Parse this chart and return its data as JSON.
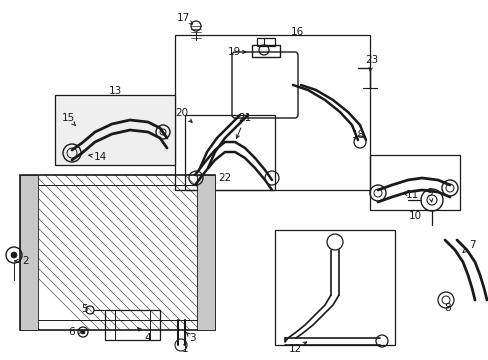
{
  "bg_color": "#ffffff",
  "lc": "#1a1a1a",
  "figsize": [
    4.89,
    3.6
  ],
  "dpi": 100,
  "xlim": [
    0,
    489
  ],
  "ylim": [
    0,
    360
  ]
}
